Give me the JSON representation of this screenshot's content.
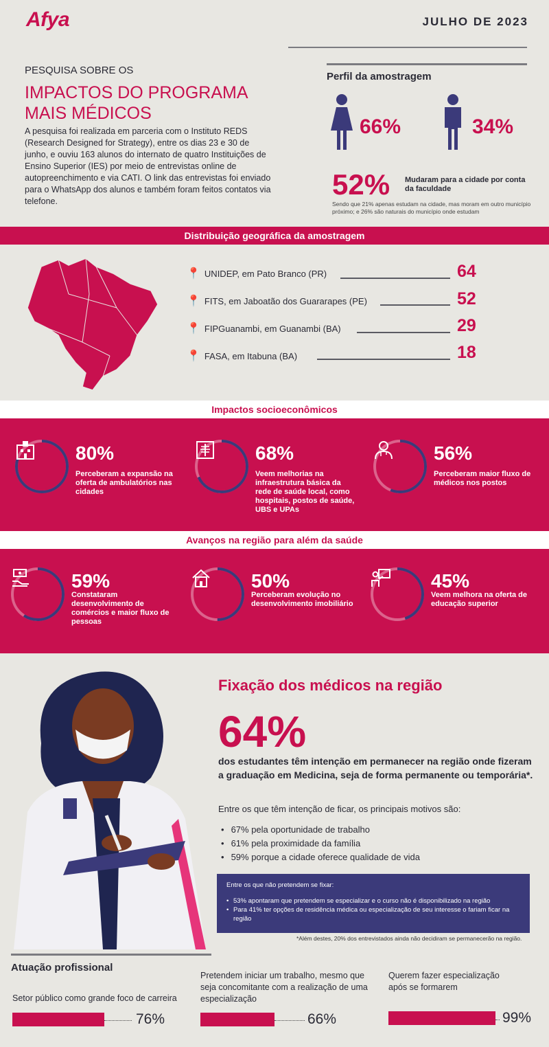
{
  "header": {
    "logo": "Afya",
    "date": "JULHO DE 2023"
  },
  "intro": {
    "pre_title": "PESQUISA SOBRE OS",
    "title": "IMPACTOS DO PROGRAMA MAIS MÉDICOS",
    "body": "A pesquisa foi realizada em parceria com o Instituto REDS (Research Designed for Strategy), entre os dias 23 e 30 de junho, e ouviu 163 alunos do internato de quatro Instituições de Ensino Superior (IES) por meio de entrevistas online de autopreenchimento e via CATI. O link das entrevistas foi enviado para o WhatsApp dos alunos e também foram feitos contatos via telefone."
  },
  "perfil": {
    "title": "Perfil da amostragem",
    "female_pct": "66%",
    "male_pct": "34%",
    "moved_pct": "52%",
    "moved_text": "Mudaram para a cidade por conta da faculdade",
    "moved_sub": "Sendo que 21% apenas estudam na cidade, mas moram em outro município próximo; e 26% são naturais do município onde estudam"
  },
  "geo": {
    "title": "Distribuição geográfica da amostragem",
    "items": [
      {
        "label": "UNIDEP, em Pato Branco (PR)",
        "value": "64"
      },
      {
        "label": "FITS, em Jaboatão dos Guararapes (PE)",
        "value": "52"
      },
      {
        "label": "FIPGuanambi, em Guanambi (BA)",
        "value": "29"
      },
      {
        "label": "FASA, em Itabuna (BA)",
        "value": "18"
      }
    ]
  },
  "socio": {
    "title": "Impactos socioeconômicos",
    "items": [
      {
        "pct": "80%",
        "text": "Perceberam a expansão na oferta de ambulatórios nas cidades",
        "icon": "hospital-icon",
        "fill": 0.8
      },
      {
        "pct": "68%",
        "text": "Veem melhorias na infraestrutura básica da rede de saúde local, como hospitais, postos de saúde, UBS e UPAs",
        "icon": "xray-icon",
        "fill": 0.68
      },
      {
        "pct": "56%",
        "text": "Perceberam maior fluxo de médicos nos postos",
        "icon": "doctor-icon",
        "fill": 0.56
      }
    ]
  },
  "avancos": {
    "title": "Avanços na região para além da saúde",
    "items": [
      {
        "pct": "59%",
        "text": "Constataram desenvolvimento de comércios e maior fluxo de pessoas",
        "icon": "money-hand-icon",
        "fill": 0.59
      },
      {
        "pct": "50%",
        "text": "Perceberam evolução no desenvolvimento imobiliário",
        "icon": "house-icon",
        "fill": 0.5
      },
      {
        "pct": "45%",
        "text": "Veem melhora na oferta de educação superior",
        "icon": "teacher-icon",
        "fill": 0.45
      }
    ]
  },
  "fixacao": {
    "title": "Fixação dos médicos na região",
    "pct": "64%",
    "desc": "dos estudantes têm intenção em permanecer na região onde fizeram a graduação em Medicina, seja de forma permanente ou temporária*.",
    "intro": "Entre os que têm intenção de ficar, os principais motivos são:",
    "reasons": [
      "67% pela oportunidade de trabalho",
      "61% pela proximidade da família",
      "59% porque a cidade oferece qualidade de vida"
    ],
    "box_title": "Entre os que não pretendem se fixar:",
    "box_items": [
      "53% apontaram que pretendem se especializar e o curso não é disponibilizado na região",
      "Para 41% ter opções de residência médica ou especialização de seu interesse o fariam ficar na região"
    ],
    "footnote": "*Além destes, 20% dos entrevistados ainda não decidiram se permanecerão na região."
  },
  "atuacao": {
    "title": "Atuação profissional",
    "items": [
      {
        "label": "Setor público como grande foco de carreira",
        "pct": "76%"
      },
      {
        "label": "Pretendem iniciar um trabalho, mesmo que seja concomitante com a realização de uma especialização",
        "pct": "66%"
      },
      {
        "label": "Querem fazer especialização após se formarem",
        "pct": "99%"
      }
    ]
  },
  "colors": {
    "brand": "#c8104f",
    "navy": "#3b3a7a",
    "bg": "#e8e7e2"
  }
}
